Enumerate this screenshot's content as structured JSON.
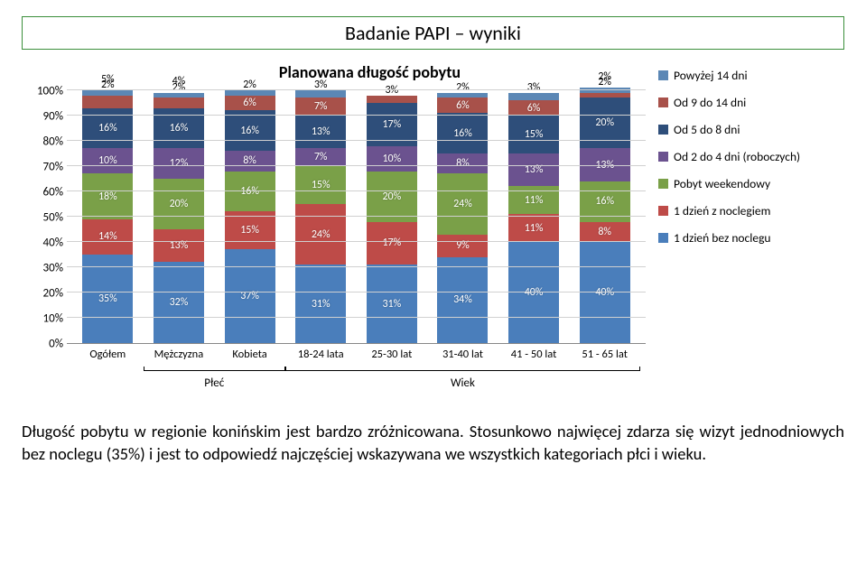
{
  "section_title": "Badanie PAPI – wyniki",
  "chart": {
    "title": "Planowana długość pobytu",
    "type": "bar-stacked-100",
    "y_axis": {
      "min": 0,
      "max": 100,
      "step": 10,
      "suffix": "%"
    },
    "legend": [
      {
        "label": "Powyżej 14 dni",
        "color": "#5b87b5"
      },
      {
        "label": "Od 9 do 14 dni",
        "color": "#a8514a"
      },
      {
        "label": "Od 5 do 8 dni",
        "color": "#2e4e7a"
      },
      {
        "label": "Od 2 do 4 dni (roboczych)",
        "color": "#6b528f"
      },
      {
        "label": "Pobyt weekendowy",
        "color": "#7aa048"
      },
      {
        "label": "1 dzień z noclegiem",
        "color": "#be4b48"
      },
      {
        "label": "1 dzień bez noclegu",
        "color": "#4a7ebb"
      }
    ],
    "categories": [
      {
        "label": "Ogółem",
        "group": ""
      },
      {
        "label": "Mężczyzna",
        "group": "Płeć"
      },
      {
        "label": "Kobieta",
        "group": "Płeć"
      },
      {
        "label": "18-24 lata",
        "group": "Wiek"
      },
      {
        "label": "25-30 lat",
        "group": "Wiek"
      },
      {
        "label": "31-40 lat",
        "group": "Wiek"
      },
      {
        "label": "41 - 50 lat",
        "group": "Wiek"
      },
      {
        "label": "51 - 65 lat",
        "group": "Wiek"
      }
    ],
    "groups": [
      {
        "label": "Płeć",
        "start": 1,
        "end": 2
      },
      {
        "label": "Wiek",
        "start": 3,
        "end": 7
      }
    ],
    "series_order": [
      "1 dzień bez noclegu",
      "1 dzień z noclegiem",
      "Pobyt weekendowy",
      "Od 2 do 4 dni (roboczych)",
      "Od 5 do 8 dni",
      "Od 9 do 14 dni",
      "Powyżej 14 dni"
    ],
    "data": [
      [
        35,
        14,
        18,
        10,
        16,
        5,
        2
      ],
      [
        32,
        13,
        20,
        12,
        16,
        4,
        2
      ],
      [
        37,
        15,
        16,
        8,
        16,
        6,
        2
      ],
      [
        31,
        24,
        15,
        7,
        13,
        7,
        3
      ],
      [
        31,
        17,
        20,
        10,
        17,
        3,
        null
      ],
      [
        34,
        9,
        24,
        8,
        16,
        6,
        2
      ],
      [
        40,
        11,
        11,
        13,
        15,
        6,
        3
      ],
      [
        40,
        8,
        16,
        13,
        20,
        2,
        2
      ]
    ],
    "label_color": "#ffffff",
    "label_fontsize": 12,
    "background": "#ffffff",
    "grid_color": "#d0d0d0"
  },
  "body": "Długość pobytu w regionie konińskim jest bardzo zróżnicowana. Stosunkowo najwięcej zdarza się wizyt jednodniowych bez noclegu (35%) i jest to odpowiedź najczęściej wskazywana we wszystkich kategoriach płci i wieku."
}
